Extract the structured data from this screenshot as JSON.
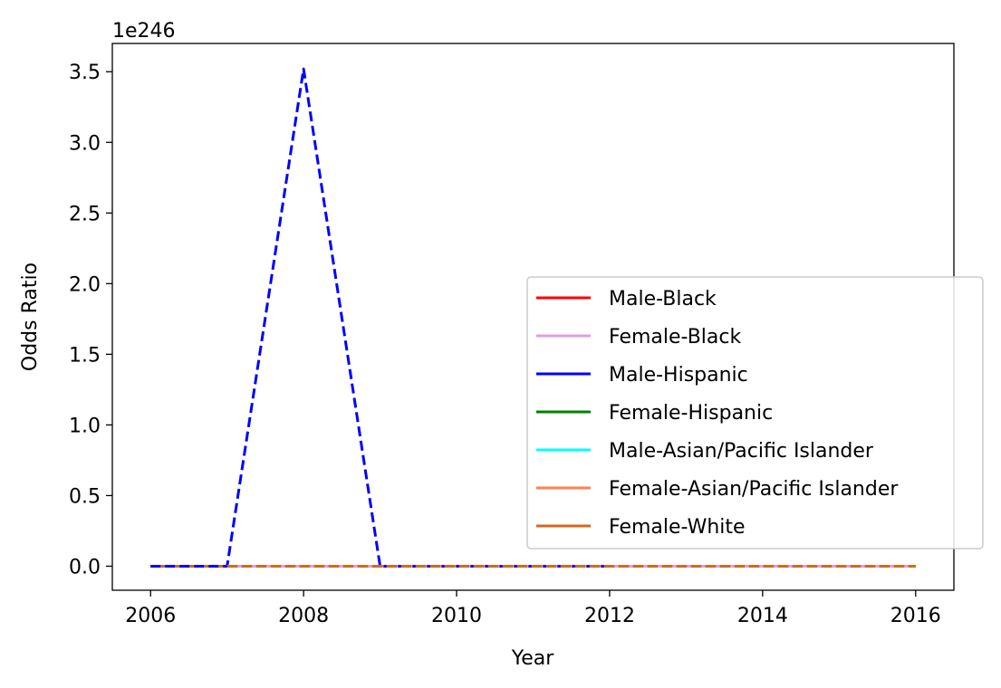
{
  "chart_data": {
    "type": "line",
    "xlabel": "Year",
    "ylabel": "Odds Ratio",
    "y_offset_label": "1e246",
    "xlim": [
      2005.5,
      2016.5
    ],
    "ylim": [
      -0.17,
      3.7
    ],
    "y_scale_note": "values in units of 1e246",
    "x_ticks": [
      2006,
      2008,
      2010,
      2012,
      2014,
      2016
    ],
    "x_tick_labels": [
      "2006",
      "2008",
      "2010",
      "2012",
      "2014",
      "2016"
    ],
    "y_ticks": [
      0.0,
      0.5,
      1.0,
      1.5,
      2.0,
      2.5,
      3.0,
      3.5
    ],
    "y_tick_labels": [
      "0.0",
      "0.5",
      "1.0",
      "1.5",
      "2.0",
      "2.5",
      "3.0",
      "3.5"
    ],
    "grid": false,
    "legend_position": "lower-right",
    "x": [
      2006,
      2007,
      2008,
      2009,
      2010,
      2011,
      2012,
      2013,
      2014,
      2015,
      2016
    ],
    "series": [
      {
        "name": "Male-Black",
        "color": "#ff0000",
        "dash": "solid",
        "values": [
          0,
          0,
          0,
          0,
          0,
          0,
          0,
          0,
          0,
          0,
          0
        ]
      },
      {
        "name": "Female-Black",
        "color": "#dda0dd",
        "dash": "solid",
        "values": [
          0,
          0,
          0,
          0,
          0,
          0,
          0,
          0,
          0,
          0,
          0
        ]
      },
      {
        "name": "Male-Hispanic",
        "color": "#0000ff",
        "dash": "solid",
        "values": [
          0,
          0,
          0,
          0,
          0,
          0,
          0,
          0,
          0,
          0,
          0
        ]
      },
      {
        "name": "Female-Hispanic",
        "color": "#008000",
        "dash": "solid",
        "values": [
          0,
          0,
          0,
          0,
          0,
          0,
          0,
          0,
          0,
          0,
          0
        ]
      },
      {
        "name": "Male-Asian/Pacific Islander",
        "color": "#00ffff",
        "dash": "solid",
        "values": [
          0,
          0,
          0,
          0,
          0,
          0,
          0,
          0,
          0,
          0,
          0
        ]
      },
      {
        "name": "Female-Asian/Pacific Islander",
        "color": "#ff7f50",
        "dash": "solid",
        "values": [
          0,
          0,
          0,
          0,
          0,
          0,
          0,
          0,
          0,
          0,
          0
        ]
      },
      {
        "name": "Female-White",
        "color": "#d2691e",
        "dash": "solid",
        "values": [
          0,
          0,
          0,
          0,
          0,
          0,
          0,
          0,
          0,
          0,
          0
        ]
      }
    ],
    "extra_lines": [
      {
        "color": "#dda0dd",
        "dash": "dashed",
        "x": [
          2006,
          2016
        ],
        "values": [
          0,
          0
        ]
      },
      {
        "color": "#0000ff",
        "dash": "dashed",
        "x": [
          2006,
          2007,
          2008,
          2009,
          2010,
          2011,
          2012
        ],
        "values": [
          0,
          0,
          3.52,
          0,
          0,
          0,
          0
        ]
      },
      {
        "color": "#d2691e",
        "dash": "dashed",
        "x": [
          2007,
          2016
        ],
        "values": [
          0,
          0
        ]
      }
    ]
  }
}
